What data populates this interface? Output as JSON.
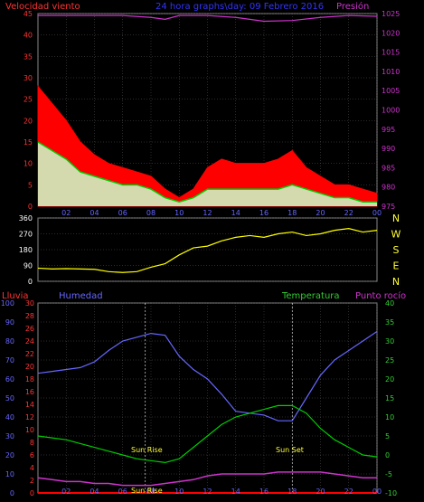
{
  "header": {
    "wind_label": "Velocidad viento",
    "title": "24 hora graphs\\day: 09 Febrero 2016",
    "pressure_label": "Presión"
  },
  "labels": {
    "rain": "Lluvia",
    "humidity": "Humedad",
    "temperature": "Temperatura",
    "dewpoint": "Punto rocío",
    "sunrise": "Sun Rise",
    "sunset": "Sun Set",
    "sunbar": "Sun Rise"
  },
  "colors": {
    "wind_gust": "#ff0000",
    "wind_avg": "#00cc00",
    "wind_low": "#ccffcc",
    "pressure": "#cc33cc",
    "direction": "#ffff00",
    "humidity": "#6666ff",
    "temperature": "#00cc00",
    "dewpoint": "#cc33cc",
    "rain": "#ff0000",
    "grid": "#555555",
    "axis_left_red": "#ff3333",
    "axis_right_pressure": "#cc33cc",
    "axis_hum": "#6666ff",
    "axis_temp": "#33cc33"
  },
  "chart_data": [
    {
      "type": "area",
      "title": "24 hora graphs\\day: 09 Febrero 2016",
      "x": [
        0,
        2,
        4,
        6,
        8,
        10,
        12,
        14,
        16,
        18,
        20,
        22,
        24
      ],
      "x_tick_labels": [
        "02",
        "04",
        "06",
        "08",
        "10",
        "12",
        "14",
        "16",
        "18",
        "20",
        "22",
        "00"
      ],
      "ylim": [
        0,
        45
      ],
      "y_ticks": [
        0,
        5,
        10,
        15,
        20,
        25,
        30,
        35,
        40,
        45
      ],
      "y2lim": [
        975,
        1025
      ],
      "y2_ticks": [
        975,
        980,
        985,
        990,
        995,
        1000,
        1005,
        1010,
        1015,
        1020,
        1025
      ],
      "series": [
        {
          "name": "Velocidad viento",
          "x": [
            0,
            1,
            2,
            3,
            4,
            5,
            6,
            7,
            8,
            9,
            10,
            11,
            12,
            13,
            14,
            15,
            16,
            17,
            18,
            19,
            20,
            21,
            22,
            23,
            24
          ],
          "values": [
            28,
            24,
            20,
            15,
            12,
            10,
            9,
            8,
            7,
            4,
            2,
            4,
            9,
            11,
            10,
            10,
            10,
            11,
            13,
            9,
            7,
            5,
            5,
            4,
            3
          ]
        },
        {
          "x": [
            0,
            1,
            2,
            3,
            4,
            5,
            6,
            7,
            8,
            9,
            10,
            11,
            12,
            13,
            14,
            15,
            16,
            17,
            18,
            19,
            20,
            21,
            22,
            23,
            24
          ],
          "values": [
            15,
            13,
            11,
            8,
            7,
            6,
            5,
            5,
            4,
            2,
            1,
            2,
            4,
            4,
            4,
            4,
            4,
            4,
            5,
            4,
            3,
            2,
            2,
            1,
            1
          ]
        },
        {
          "name": "Presión",
          "axis": "right",
          "x": [
            0,
            2,
            4,
            6,
            8,
            9,
            10,
            12,
            14,
            16,
            18,
            20,
            22,
            24
          ],
          "values": [
            1024.5,
            1024.5,
            1024.5,
            1024.5,
            1024,
            1023.5,
            1024.5,
            1024.5,
            1024,
            1023,
            1023.2,
            1024,
            1024.5,
            1024.3
          ]
        }
      ]
    },
    {
      "type": "scatter",
      "ylim": [
        0,
        360
      ],
      "y_ticks": [
        0,
        90,
        180,
        270,
        360
      ],
      "right_labels": [
        "N",
        "W",
        "S",
        "E",
        "N"
      ],
      "series": [
        {
          "x": [
            0,
            1,
            2,
            3,
            4,
            5,
            6,
            7,
            8,
            9,
            10,
            11,
            12,
            13,
            14,
            15,
            16,
            17,
            18,
            19,
            20,
            21,
            22,
            23,
            24
          ],
          "values": [
            75,
            70,
            72,
            70,
            68,
            55,
            50,
            55,
            80,
            100,
            150,
            190,
            200,
            230,
            250,
            260,
            250,
            270,
            280,
            260,
            270,
            290,
            300,
            280,
            290
          ]
        }
      ]
    },
    {
      "type": "line",
      "x_tick_labels": [
        "02",
        "04",
        "06",
        "08",
        "10",
        "12",
        "14",
        "16",
        "18",
        "20",
        "22",
        "00"
      ],
      "y_left_rain": {
        "ylim": [
          0,
          30
        ],
        "ticks": [
          0,
          2,
          4,
          6,
          8,
          10,
          12,
          14,
          16,
          18,
          20,
          22,
          24,
          26,
          28,
          30
        ]
      },
      "y_left_hum": {
        "ylim": [
          0,
          100
        ],
        "ticks": [
          0,
          10,
          20,
          30,
          40,
          50,
          60,
          70,
          80,
          90,
          100
        ]
      },
      "y_right_temp": {
        "ylim": [
          -10,
          40
        ],
        "ticks": [
          -10,
          -5,
          0,
          5,
          10,
          15,
          20,
          25,
          30,
          35,
          40
        ]
      },
      "series": [
        {
          "name": "Humedad",
          "x": [
            0,
            1,
            2,
            3,
            4,
            5,
            6,
            7,
            8,
            9,
            10,
            11,
            12,
            13,
            14,
            15,
            16,
            17,
            18,
            19,
            20,
            21,
            22,
            23,
            24
          ],
          "values": [
            63,
            64,
            65,
            66,
            69,
            75,
            80,
            82,
            84,
            83,
            72,
            65,
            60,
            52,
            43,
            42,
            41,
            38,
            38,
            50,
            62,
            70,
            75,
            80,
            85
          ]
        },
        {
          "name": "Temperatura",
          "x": [
            0,
            1,
            2,
            3,
            4,
            5,
            6,
            7,
            8,
            9,
            10,
            11,
            12,
            13,
            14,
            15,
            16,
            17,
            18,
            19,
            20,
            21,
            22,
            23,
            24
          ],
          "values": [
            5,
            4.5,
            4,
            3,
            2,
            1,
            0,
            -1,
            -1.5,
            -2,
            -1,
            2,
            5,
            8,
            10,
            11,
            12,
            13,
            13,
            11,
            7,
            4,
            2,
            0,
            -0.5
          ]
        },
        {
          "name": "Punto rocío",
          "x": [
            0,
            1,
            2,
            3,
            4,
            5,
            6,
            7,
            8,
            9,
            10,
            11,
            12,
            13,
            14,
            15,
            16,
            17,
            18,
            19,
            20,
            21,
            22,
            23,
            24
          ],
          "values": [
            -6,
            -6.5,
            -7,
            -7,
            -7.5,
            -7.5,
            -8,
            -8,
            -8,
            -7.5,
            -7,
            -6.5,
            -5.5,
            -5,
            -5,
            -5,
            -5,
            -4.5,
            -4.5,
            -4.5,
            -4.5,
            -5,
            -5.5,
            -6,
            -6
          ]
        },
        {
          "name": "Lluvia",
          "x": [
            0,
            24
          ],
          "values": [
            0,
            0
          ]
        }
      ]
    }
  ]
}
